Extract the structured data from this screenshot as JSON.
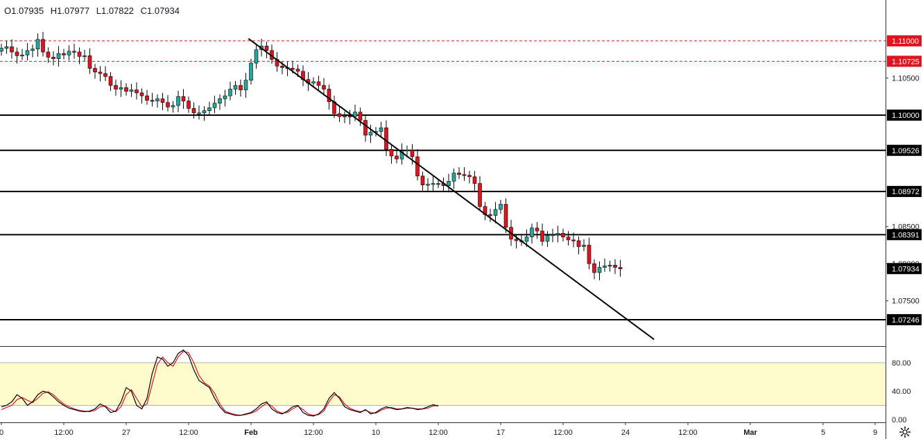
{
  "ohlc": {
    "open": "O1.07935",
    "high": "H1.07977",
    "low": "L1.07822",
    "close": "C1.07934"
  },
  "colors": {
    "up": "#26a69a",
    "down": "#e0141e",
    "level": "#000000",
    "dashed": "#e0141e",
    "stoch_k": "#000000",
    "stoch_d": "#e0141e",
    "band": "#fffbcc"
  },
  "price_axis": {
    "plain_ticks": [
      "1.10500",
      "1.08500",
      "1.08000",
      "1.07500"
    ],
    "min": 1.069,
    "max": 1.1155
  },
  "red_levels": [
    {
      "price": 1.11,
      "label": "1.11000"
    },
    {
      "price": 1.10725,
      "label": "1.10725"
    }
  ],
  "black_levels": [
    {
      "price": 1.1,
      "label": "1.10000"
    },
    {
      "price": 1.09526,
      "label": "1.09526"
    },
    {
      "price": 1.08972,
      "label": "1.08972"
    },
    {
      "price": 1.08391,
      "label": "1.08391"
    },
    {
      "price": 1.07246,
      "label": "1.07246"
    }
  ],
  "current_price": {
    "price": 1.07934,
    "label": "1.07934"
  },
  "time_axis": {
    "labels": [
      {
        "t": 0,
        "text": "0",
        "bold": false
      },
      {
        "t": 12,
        "text": "12:00",
        "bold": false
      },
      {
        "t": 24,
        "text": "27",
        "bold": false
      },
      {
        "t": 36,
        "text": "12:00",
        "bold": false
      },
      {
        "t": 48,
        "text": "Feb",
        "bold": true
      },
      {
        "t": 60,
        "text": "12:00",
        "bold": false
      },
      {
        "t": 72,
        "text": "10",
        "bold": false
      },
      {
        "t": 84,
        "text": "12:00",
        "bold": false
      },
      {
        "t": 96,
        "text": "17",
        "bold": false
      },
      {
        "t": 108,
        "text": "12:00",
        "bold": false
      },
      {
        "t": 120,
        "text": "24",
        "bold": false
      },
      {
        "t": 132,
        "text": "12:00",
        "bold": false
      },
      {
        "t": 144,
        "text": "Mar",
        "bold": true
      },
      {
        "t": 158,
        "text": "5",
        "bold": false
      },
      {
        "t": 168,
        "text": "9",
        "bold": false
      }
    ]
  },
  "trendline": {
    "from": {
      "t": 47.5,
      "price": 1.1103
    },
    "to": {
      "t": 125.5,
      "price": 1.0698
    }
  },
  "stochastic": {
    "ticks": [
      "80.00",
      "40.00",
      "0.00"
    ],
    "upper": 80,
    "lower": 20,
    "k": [
      18,
      20,
      25,
      35,
      30,
      20,
      25,
      35,
      40,
      38,
      32,
      25,
      20,
      16,
      14,
      12,
      11,
      12,
      15,
      22,
      18,
      10,
      12,
      25,
      45,
      40,
      20,
      15,
      30,
      65,
      88,
      85,
      75,
      80,
      93,
      98,
      90,
      70,
      55,
      50,
      45,
      30,
      18,
      10,
      8,
      6,
      6,
      8,
      10,
      15,
      22,
      25,
      15,
      10,
      8,
      12,
      18,
      20,
      10,
      6,
      5,
      8,
      15,
      30,
      38,
      30,
      18,
      14,
      12,
      10,
      14,
      8,
      10,
      15,
      18,
      16,
      14,
      15,
      17,
      16,
      14,
      15,
      18,
      21,
      19
    ],
    "d": [
      14,
      17,
      20,
      28,
      31,
      27,
      24,
      30,
      37,
      39,
      35,
      28,
      22,
      18,
      15,
      13,
      12,
      11,
      13,
      18,
      19,
      14,
      11,
      18,
      35,
      42,
      30,
      18,
      22,
      50,
      78,
      88,
      80,
      75,
      88,
      96,
      94,
      80,
      62,
      52,
      47,
      37,
      22,
      12,
      9,
      7,
      6,
      7,
      9,
      12,
      18,
      23,
      19,
      12,
      9,
      10,
      15,
      19,
      14,
      8,
      6,
      7,
      12,
      25,
      35,
      32,
      22,
      16,
      13,
      11,
      13,
      10,
      9,
      13,
      16,
      17,
      15,
      15,
      16,
      16,
      15,
      15,
      16,
      19,
      20
    ]
  },
  "chart_data": {
    "type": "candlestick",
    "title": "",
    "symbol": "",
    "xlabel": "",
    "ylabel": "",
    "ylim": [
      1.069,
      1.1155
    ],
    "x_label_note": "time labels shown: 0, 12:00, 27, 12:00, Feb, 12:00, 10, 12:00, 17, 12:00, 24, 12:00, Mar, 5, 9",
    "closes": [
      1.109,
      1.1092,
      1.1085,
      1.108,
      1.1081,
      1.1087,
      1.1089,
      1.1102,
      1.1085,
      1.1078,
      1.1076,
      1.1083,
      1.1081,
      1.1086,
      1.1085,
      1.1079,
      1.108,
      1.1063,
      1.1058,
      1.1056,
      1.1052,
      1.104,
      1.1035,
      1.1037,
      1.1032,
      1.1034,
      1.103,
      1.1026,
      1.102,
      1.1019,
      1.1022,
      1.1017,
      1.1011,
      1.1013,
      1.1025,
      1.1019,
      1.1009,
      1.1003,
      1.1003,
      1.1006,
      1.101,
      1.1016,
      1.1022,
      1.1026,
      1.1035,
      1.104,
      1.1034,
      1.1047,
      1.107,
      1.1088,
      1.1093,
      1.1087,
      1.1075,
      1.1066,
      1.1064,
      1.1063,
      1.1062,
      1.1059,
      1.1048,
      1.1043,
      1.1045,
      1.104,
      1.1035,
      1.1018,
      1.1002,
      1.0998,
      1.0999,
      1.0998,
      1.1004,
      1.0993,
      1.0973,
      1.0977,
      1.0978,
      1.0983,
      1.0954,
      1.0945,
      1.0941,
      1.0952,
      1.0953,
      1.0944,
      1.0918,
      1.0906,
      1.0907,
      1.0908,
      1.0908,
      1.0905,
      1.0911,
      1.0922,
      1.092,
      1.0919,
      1.0917,
      1.0908,
      1.0877,
      1.0866,
      1.0865,
      1.0873,
      1.088,
      1.0849,
      1.0833,
      1.0831,
      1.083,
      1.0836,
      1.0848,
      1.0844,
      1.083,
      1.0838,
      1.0839,
      1.0841,
      1.0836,
      1.0832,
      1.0831,
      1.0823,
      1.0825,
      1.08,
      1.0788,
      1.0795,
      1.0797,
      1.0798,
      1.0795,
      1.0793
    ]
  }
}
